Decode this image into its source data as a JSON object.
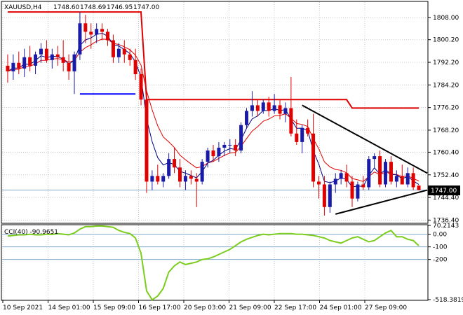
{
  "chart_data": [
    {
      "type": "candlestick",
      "title": "XAUUSD,H4",
      "ohlc_readout": [
        "1748.60",
        "1748.69",
        "1746.95",
        "1747.00"
      ],
      "current_price_label": "1747.00",
      "y_ticks": [
        "1808.00",
        "1800.20",
        "1792.20",
        "1784.20",
        "1776.20",
        "1768.20",
        "1760.40",
        "1752.40",
        "1744.40",
        "1736.40"
      ],
      "ylim": [
        1735.5,
        1813.5
      ],
      "x_ticks": [
        "10 Sep 2021",
        "14 Sep 01:00",
        "15 Sep 09:00",
        "16 Sep 17:00",
        "20 Sep 03:00",
        "21 Sep 09:00",
        "22 Sep 17:00",
        "24 Sep 01:00",
        "27 Sep 09:00"
      ],
      "candles": [
        [
          1791,
          1795,
          1785,
          1789
        ],
        [
          1789,
          1795,
          1786,
          1792
        ],
        [
          1792,
          1796,
          1788,
          1790
        ],
        [
          1790,
          1797,
          1787,
          1794
        ],
        [
          1794,
          1798,
          1789,
          1791
        ],
        [
          1791,
          1796,
          1788,
          1795
        ],
        [
          1795,
          1799,
          1792,
          1797
        ],
        [
          1797,
          1800,
          1792,
          1793
        ],
        [
          1793,
          1797,
          1790,
          1795
        ],
        [
          1795,
          1798,
          1791,
          1794
        ],
        [
          1794,
          1800,
          1789,
          1792
        ],
        [
          1792,
          1795,
          1786,
          1789
        ],
        [
          1789,
          1796,
          1781,
          1795
        ],
        [
          1795,
          1810,
          1793,
          1806
        ],
        [
          1806,
          1809,
          1799,
          1803
        ],
        [
          1803,
          1806,
          1797,
          1802
        ],
        [
          1802,
          1806,
          1799,
          1804
        ],
        [
          1804,
          1806,
          1800,
          1803
        ],
        [
          1803,
          1804,
          1798,
          1800
        ],
        [
          1800,
          1802,
          1792,
          1794
        ],
        [
          1794,
          1799,
          1792,
          1797
        ],
        [
          1797,
          1800,
          1792,
          1795
        ],
        [
          1795,
          1797,
          1791,
          1793
        ],
        [
          1793,
          1797,
          1786,
          1788
        ],
        [
          1788,
          1790,
          1777,
          1779
        ],
        [
          1779,
          1782,
          1746,
          1750
        ],
        [
          1750,
          1754,
          1747,
          1752
        ],
        [
          1752,
          1756,
          1749,
          1750
        ],
        [
          1750,
          1753,
          1748,
          1752
        ],
        [
          1752,
          1760,
          1751,
          1758
        ],
        [
          1758,
          1762,
          1753,
          1755
        ],
        [
          1755,
          1758,
          1748,
          1750
        ],
        [
          1750,
          1754,
          1747,
          1752
        ],
        [
          1752,
          1754,
          1749,
          1751
        ],
        [
          1751,
          1753,
          1741,
          1750
        ],
        [
          1750,
          1758,
          1749,
          1757
        ],
        [
          1757,
          1762,
          1755,
          1761
        ],
        [
          1761,
          1763,
          1757,
          1759
        ],
        [
          1759,
          1764,
          1757,
          1762
        ],
        [
          1762,
          1764,
          1759,
          1763
        ],
        [
          1763,
          1765,
          1760,
          1763
        ],
        [
          1763,
          1765,
          1759,
          1761
        ],
        [
          1761,
          1771,
          1760,
          1770
        ],
        [
          1770,
          1776,
          1769,
          1775
        ],
        [
          1775,
          1782,
          1773,
          1777
        ],
        [
          1777,
          1779,
          1773,
          1775
        ],
        [
          1775,
          1779,
          1774,
          1778
        ],
        [
          1778,
          1780,
          1773,
          1775
        ],
        [
          1775,
          1781,
          1774,
          1777
        ],
        [
          1777,
          1779,
          1772,
          1774
        ],
        [
          1774,
          1778,
          1771,
          1776
        ],
        [
          1776,
          1787,
          1766,
          1767
        ],
        [
          1767,
          1772,
          1763,
          1764
        ],
        [
          1764,
          1770,
          1760,
          1769
        ],
        [
          1769,
          1772,
          1766,
          1767
        ],
        [
          1767,
          1774,
          1748,
          1750
        ],
        [
          1750,
          1752,
          1744,
          1749
        ],
        [
          1749,
          1752,
          1738,
          1741
        ],
        [
          1741,
          1750,
          1739,
          1749
        ],
        [
          1749,
          1753,
          1746,
          1751
        ],
        [
          1751,
          1754,
          1749,
          1753
        ],
        [
          1753,
          1756,
          1748,
          1750
        ],
        [
          1750,
          1752,
          1741,
          1744
        ],
        [
          1744,
          1750,
          1743,
          1749
        ],
        [
          1749,
          1752,
          1747,
          1748
        ],
        [
          1748,
          1759,
          1747,
          1758
        ],
        [
          1758,
          1760,
          1755,
          1759
        ],
        [
          1759,
          1761,
          1748,
          1749
        ],
        [
          1749,
          1758,
          1748,
          1757
        ],
        [
          1757,
          1759,
          1749,
          1750
        ],
        [
          1750,
          1754,
          1748,
          1752
        ],
        [
          1752,
          1756,
          1749,
          1749
        ],
        [
          1749,
          1755,
          1748,
          1753
        ],
        [
          1753,
          1755,
          1747,
          1748
        ],
        [
          1748.6,
          1748.69,
          1746.95,
          1747.0
        ]
      ],
      "overlays": {
        "fast_ma_color": "#e00000",
        "slow_ma_color": "#000080",
        "step_line_color": "#e00000",
        "blue_level_color": "#0000ff",
        "wedge_color": "#000000"
      },
      "colors": {
        "bull": "#1a1aa8",
        "bear": "#e00000",
        "grid": "#c8c8c8",
        "price_line": "#7fa8c8"
      }
    },
    {
      "type": "line",
      "title": "CCI(40) -90.9651",
      "y_ticks": [
        "70.2143",
        "0.00",
        "-100",
        "-200",
        "-518.3819"
      ],
      "ylim": [
        -518.3819,
        70.2143
      ],
      "levels": [
        0,
        -100,
        -200
      ],
      "color": "#7ccd1f",
      "values": [
        -15,
        -10,
        -5,
        -5,
        0,
        -5,
        -5,
        0,
        -2,
        5,
        0,
        -5,
        10,
        40,
        60,
        60,
        65,
        65,
        60,
        55,
        30,
        15,
        5,
        -30,
        -150,
        -450,
        -520,
        -490,
        -430,
        -300,
        -250,
        -220,
        -240,
        -230,
        -220,
        -200,
        -195,
        -180,
        -160,
        -140,
        -120,
        -90,
        -60,
        -40,
        -25,
        -10,
        0,
        -5,
        0,
        5,
        5,
        5,
        0,
        0,
        -5,
        -10,
        -20,
        -30,
        -50,
        -60,
        -70,
        -50,
        -30,
        -20,
        -40,
        -60,
        -50,
        -20,
        10,
        30,
        -20,
        -20,
        -40,
        -50,
        -91
      ]
    }
  ]
}
